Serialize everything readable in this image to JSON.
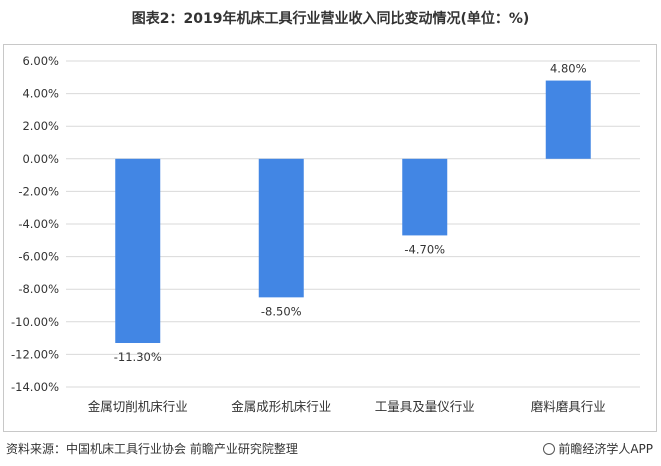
{
  "title": "图表2：2019年机床工具行业营业收入同比变动情况(单位：%)",
  "source": "资料来源：中国机床工具行业协会 前瞻产业研究院整理",
  "brand": "前瞻经济学人APP",
  "colors": {
    "bar": "#4286e4",
    "grid": "#d9d9d9",
    "text": "#333333"
  },
  "chart_data": {
    "type": "bar",
    "categories": [
      "金属切削机床行业",
      "金属成形机床行业",
      "工量具及量仪行业",
      "磨料磨具行业"
    ],
    "values": [
      -11.3,
      -8.5,
      -4.7,
      4.8
    ],
    "data_labels": [
      "-11.30%",
      "-8.50%",
      "-4.70%",
      "4.80%"
    ],
    "ylim": [
      -14,
      6
    ],
    "yticks": [
      6,
      4,
      2,
      0,
      -2,
      -4,
      -6,
      -8,
      -10,
      -12,
      -14
    ],
    "ytick_labels": [
      "6.00%",
      "4.00%",
      "2.00%",
      "0.00%",
      "-2.00%",
      "-4.00%",
      "-6.00%",
      "-8.00%",
      "-10.00%",
      "-12.00%",
      "-14.00%"
    ],
    "grid": true,
    "legend": "none"
  }
}
